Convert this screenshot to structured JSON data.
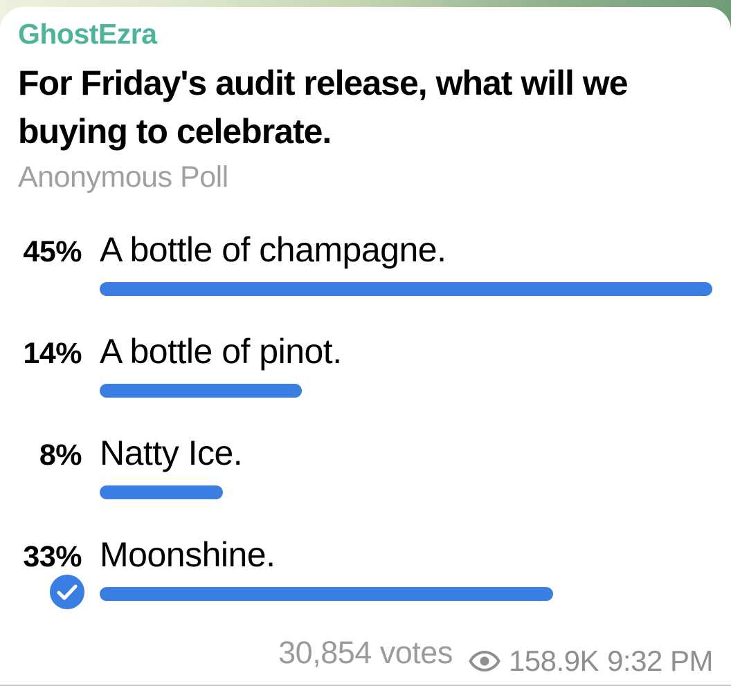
{
  "channel": {
    "name": "GhostEzra",
    "name_color": "#4db39a"
  },
  "poll": {
    "question": "For Friday's audit release, what will we buying to celebrate.",
    "type_label": "Anonymous Poll",
    "bar_color": "#3a7de3",
    "options": [
      {
        "percent": 45,
        "percent_label": "45%",
        "text": "A bottle of champagne.",
        "voted": false
      },
      {
        "percent": 14,
        "percent_label": "14%",
        "text": "A bottle of pinot.",
        "voted": false
      },
      {
        "percent": 8,
        "percent_label": "8%",
        "text": "Natty Ice.",
        "voted": false
      },
      {
        "percent": 33,
        "percent_label": "33%",
        "text": "Moonshine.",
        "voted": true
      }
    ],
    "total_votes_label": "30,854 votes"
  },
  "footer": {
    "views": "158.9K",
    "time": "9:32 PM"
  }
}
